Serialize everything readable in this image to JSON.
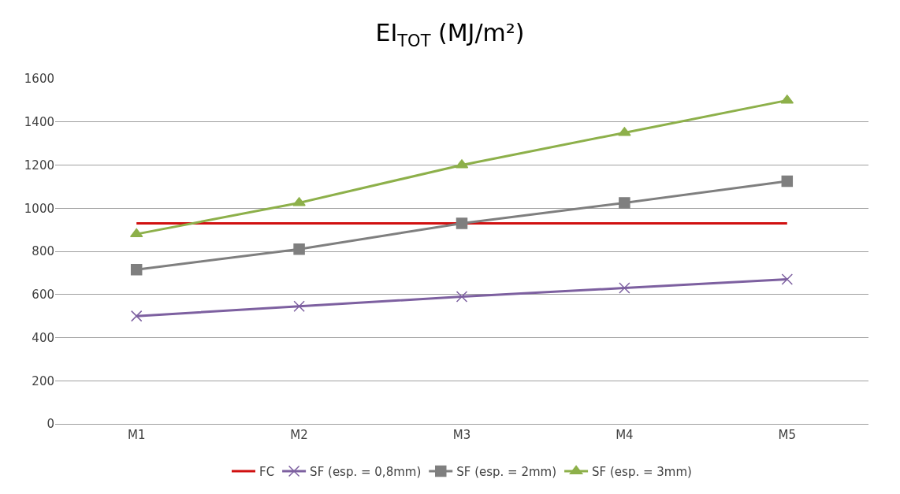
{
  "chart_data": {
    "type": "line",
    "title": "EI$_{TOT}$ (MJ/m²)",
    "categories": [
      "M1",
      "M2",
      "M3",
      "M4",
      "M5"
    ],
    "series": [
      {
        "name": "FC",
        "color": "#d01010",
        "marker": "none",
        "values": [
          930,
          930,
          930,
          930,
          930
        ]
      },
      {
        "name": "SF (esp. = 0,8mm)",
        "color": "#7d60a0",
        "marker": "cross",
        "values": [
          500,
          545,
          590,
          630,
          670
        ]
      },
      {
        "name": "SF (esp. = 2mm)",
        "color": "#7f7f7f",
        "marker": "square",
        "values": [
          715,
          810,
          930,
          1025,
          1125
        ]
      },
      {
        "name": "SF (esp. = 3mm)",
        "color": "#8db04a",
        "marker": "triangle",
        "values": [
          880,
          1025,
          1200,
          1350,
          1500
        ]
      }
    ],
    "ylim": [
      0,
      1600
    ],
    "yticks": [
      0,
      200,
      400,
      600,
      800,
      1000,
      1200,
      1400,
      1600
    ],
    "grid": "y",
    "legend": "bottom",
    "line_style": "solid"
  }
}
